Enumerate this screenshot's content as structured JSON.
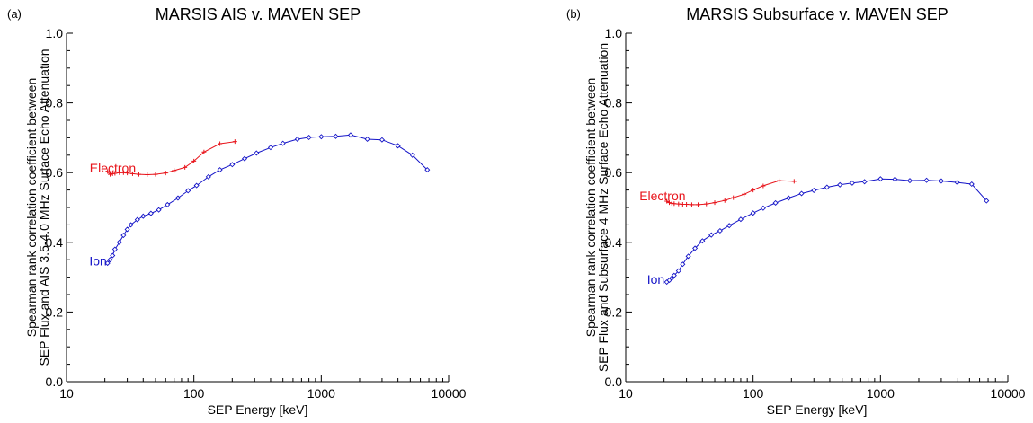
{
  "chart_data": [
    {
      "type": "line",
      "panel_label": "(a)",
      "title": "MARSIS AIS v. MAVEN SEP",
      "xlabel": "SEP Energy [keV]",
      "ylabel_line1": "Spearman rank correlation coefficient between",
      "ylabel_line2": "SEP Flux and AIS 3.5-4.0 MHz Surface Echo Attenuation",
      "xscale": "log",
      "xlim": [
        10,
        10000
      ],
      "ylim": [
        0.0,
        1.0
      ],
      "xticks": [
        10,
        100,
        1000,
        10000
      ],
      "xtick_labels": [
        "10",
        "100",
        "1000",
        "10000"
      ],
      "yticks": [
        0.0,
        0.2,
        0.4,
        0.6,
        0.8,
        1.0
      ],
      "ytick_labels": [
        "0.0",
        "0.2",
        "0.4",
        "0.6",
        "0.8",
        "1.0"
      ],
      "series": [
        {
          "name": "Electron",
          "color": "#e8141b",
          "marker": "plus",
          "x": [
            21,
            22,
            23,
            24,
            26,
            28,
            30,
            33,
            37,
            43,
            50,
            60,
            70,
            85,
            100,
            120,
            160,
            210
          ],
          "y": [
            0.603,
            0.595,
            0.597,
            0.598,
            0.6,
            0.6,
            0.599,
            0.597,
            0.595,
            0.594,
            0.595,
            0.599,
            0.606,
            0.615,
            0.633,
            0.659,
            0.683,
            0.689
          ]
        },
        {
          "name": "Ion",
          "color": "#1515c8",
          "marker": "diamond",
          "x": [
            21,
            22,
            23,
            24,
            26,
            28,
            30,
            32,
            36,
            40,
            46,
            53,
            62,
            75,
            90,
            105,
            130,
            160,
            200,
            250,
            310,
            400,
            500,
            650,
            800,
            1000,
            1300,
            1700,
            2300,
            3000,
            4000,
            5200,
            6800
          ],
          "y": [
            0.34,
            0.35,
            0.362,
            0.38,
            0.4,
            0.42,
            0.437,
            0.45,
            0.465,
            0.475,
            0.483,
            0.493,
            0.508,
            0.527,
            0.548,
            0.563,
            0.588,
            0.608,
            0.623,
            0.64,
            0.656,
            0.672,
            0.684,
            0.696,
            0.701,
            0.703,
            0.704,
            0.708,
            0.696,
            0.694,
            0.677,
            0.65,
            0.608
          ]
        }
      ],
      "annotations": [
        {
          "text": "Electron",
          "x": 15.2,
          "y": 0.613,
          "color": "#e8141b"
        },
        {
          "text": "Ion",
          "x": 15.1,
          "y": 0.347,
          "color": "#1515c8"
        }
      ],
      "grid": false,
      "legend": "none"
    },
    {
      "type": "line",
      "panel_label": "(b)",
      "title": "MARSIS Subsurface v. MAVEN SEP",
      "xlabel": "SEP Energy [keV]",
      "ylabel_line1": "Spearman rank correlation coefficient between",
      "ylabel_line2": "SEP Flux and Subsurface 4 MHz Surface Echo Attenuation",
      "xscale": "log",
      "xlim": [
        10,
        10000
      ],
      "ylim": [
        0.0,
        1.0
      ],
      "xticks": [
        10,
        100,
        1000,
        10000
      ],
      "xtick_labels": [
        "10",
        "100",
        "1000",
        "10000"
      ],
      "yticks": [
        0.0,
        0.2,
        0.4,
        0.6,
        0.8,
        1.0
      ],
      "ytick_labels": [
        "0.0",
        "0.2",
        "0.4",
        "0.6",
        "0.8",
        "1.0"
      ],
      "series": [
        {
          "name": "Electron",
          "color": "#e8141b",
          "marker": "plus",
          "x": [
            21,
            22,
            23,
            24,
            26,
            28,
            30,
            33,
            37,
            43,
            50,
            60,
            70,
            85,
            100,
            120,
            160,
            210
          ],
          "y": [
            0.518,
            0.514,
            0.512,
            0.511,
            0.51,
            0.509,
            0.509,
            0.508,
            0.508,
            0.51,
            0.514,
            0.52,
            0.528,
            0.538,
            0.55,
            0.562,
            0.577,
            0.575
          ]
        },
        {
          "name": "Ion",
          "color": "#1515c8",
          "marker": "diamond",
          "x": [
            21,
            22,
            23,
            24,
            26,
            28,
            31,
            35,
            40,
            47,
            55,
            65,
            80,
            100,
            120,
            150,
            190,
            240,
            300,
            380,
            480,
            600,
            750,
            1000,
            1300,
            1700,
            2300,
            3000,
            4000,
            5200,
            6800
          ],
          "y": [
            0.286,
            0.291,
            0.297,
            0.305,
            0.318,
            0.337,
            0.36,
            0.383,
            0.404,
            0.421,
            0.433,
            0.448,
            0.466,
            0.484,
            0.498,
            0.513,
            0.527,
            0.54,
            0.549,
            0.558,
            0.565,
            0.57,
            0.574,
            0.582,
            0.581,
            0.577,
            0.578,
            0.576,
            0.572,
            0.567,
            0.519
          ]
        }
      ],
      "annotations": [
        {
          "text": "Electron",
          "x": 12.8,
          "y": 0.534,
          "color": "#e8141b"
        },
        {
          "text": "Ion",
          "x": 14.7,
          "y": 0.294,
          "color": "#1515c8"
        }
      ],
      "grid": false,
      "legend": "none"
    }
  ]
}
